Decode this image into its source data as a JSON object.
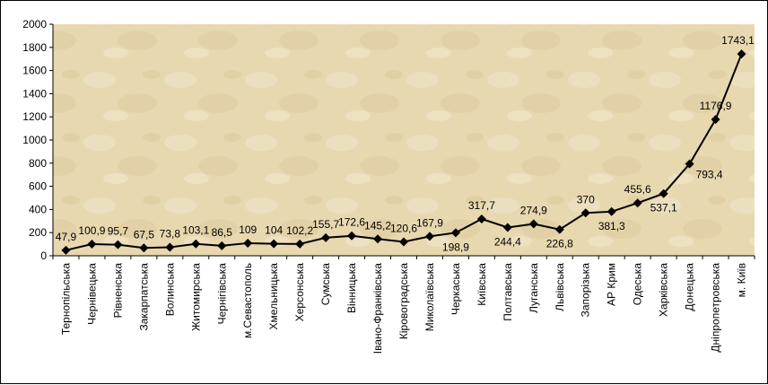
{
  "chart_data": {
    "type": "line",
    "ylim": [
      0,
      2000
    ],
    "yticks": [
      0,
      200,
      400,
      600,
      800,
      1000,
      1200,
      1400,
      1600,
      1800,
      2000
    ],
    "grid": false,
    "legend": "none",
    "categories": [
      "Тернопільська",
      "Чернівецька",
      "Рівненська",
      "Закарпатська",
      "Волинська",
      "Житомирська",
      "Чернігівська",
      "м.Севастополь",
      "Хмельницька",
      "Херсонська",
      "Сумська",
      "Вінницька",
      "Івано-Франківська",
      "Кіровоградська",
      "Миколаївська",
      "Черкаська",
      "Київська",
      "Полтавська",
      "Луганська",
      "Львівська",
      "Запорізька",
      "АР Крим",
      "Одеська",
      "Харківська",
      "Донецька",
      "Дніпропетровська",
      "м. Київ"
    ],
    "values": [
      47.9,
      100.9,
      95.7,
      67.5,
      73.8,
      103.1,
      86.5,
      109,
      104,
      102.2,
      155.7,
      172.6,
      145.2,
      120.6,
      167.9,
      198.9,
      317.7,
      244.4,
      274.9,
      226.8,
      370,
      381.3,
      455.6,
      537.1,
      793.4,
      1176.9,
      1743.1
    ],
    "value_labels": [
      "47,9",
      "100,9",
      "95,7",
      "67,5",
      "73,8",
      "103,1",
      "86,5",
      "109",
      "104",
      "102,2",
      "155,7",
      "172,6",
      "145,2",
      "120,6",
      "167,9",
      "198,9",
      "317,7",
      "244,4",
      "274,9",
      "226,8",
      "370",
      "381,3",
      "455,6",
      "537,1",
      "793,4",
      "1176,9",
      "1743,1"
    ],
    "label_positions": [
      "above",
      "above",
      "above",
      "above",
      "above",
      "above",
      "above",
      "above",
      "above",
      "above",
      "above",
      "above",
      "above",
      "above",
      "above",
      "below",
      "above",
      "below",
      "above",
      "below",
      "above",
      "below",
      "above",
      "below",
      "right",
      "above",
      "above"
    ],
    "colors": {
      "plot_bg": "#e7d6ad",
      "plot_bg_light": "#efe2c4",
      "line": "#000000",
      "marker": "#000000",
      "frame": "#000000"
    }
  }
}
